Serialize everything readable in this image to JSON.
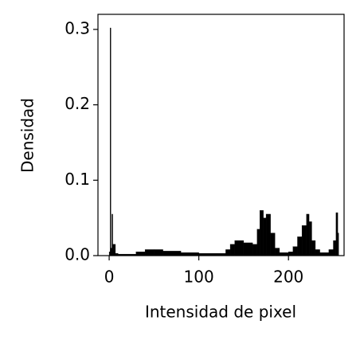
{
  "chart_data": {
    "type": "histogram",
    "xlabel": "Intensidad de pixel",
    "ylabel": "Densidad",
    "bins": [
      0,
      1,
      2,
      3,
      4,
      5,
      7,
      10,
      30,
      40,
      50,
      60,
      80,
      100,
      120,
      130,
      135,
      140,
      150,
      160,
      165,
      168,
      172,
      175,
      180,
      185,
      190,
      200,
      205,
      210,
      215,
      220,
      223,
      226,
      230,
      235,
      245,
      250,
      253,
      255,
      256
    ],
    "values": [
      0.005,
      0.302,
      0.01,
      0.055,
      0.015,
      0.015,
      0.003,
      0.002,
      0.005,
      0.008,
      0.008,
      0.006,
      0.004,
      0.003,
      0.003,
      0.008,
      0.015,
      0.02,
      0.017,
      0.015,
      0.035,
      0.06,
      0.05,
      0.055,
      0.03,
      0.01,
      0.004,
      0.005,
      0.012,
      0.025,
      0.04,
      0.055,
      0.045,
      0.02,
      0.008,
      0.004,
      0.008,
      0.02,
      0.057,
      0.03
    ],
    "color": "#000000",
    "xlim": [
      -12.5,
      262
    ],
    "ylim": [
      0,
      0.32
    ],
    "xticks": [
      0,
      100,
      200
    ],
    "yticks": [
      {
        "value": 0,
        "label": "0.0"
      },
      0.1,
      0.2,
      0.3
    ]
  }
}
